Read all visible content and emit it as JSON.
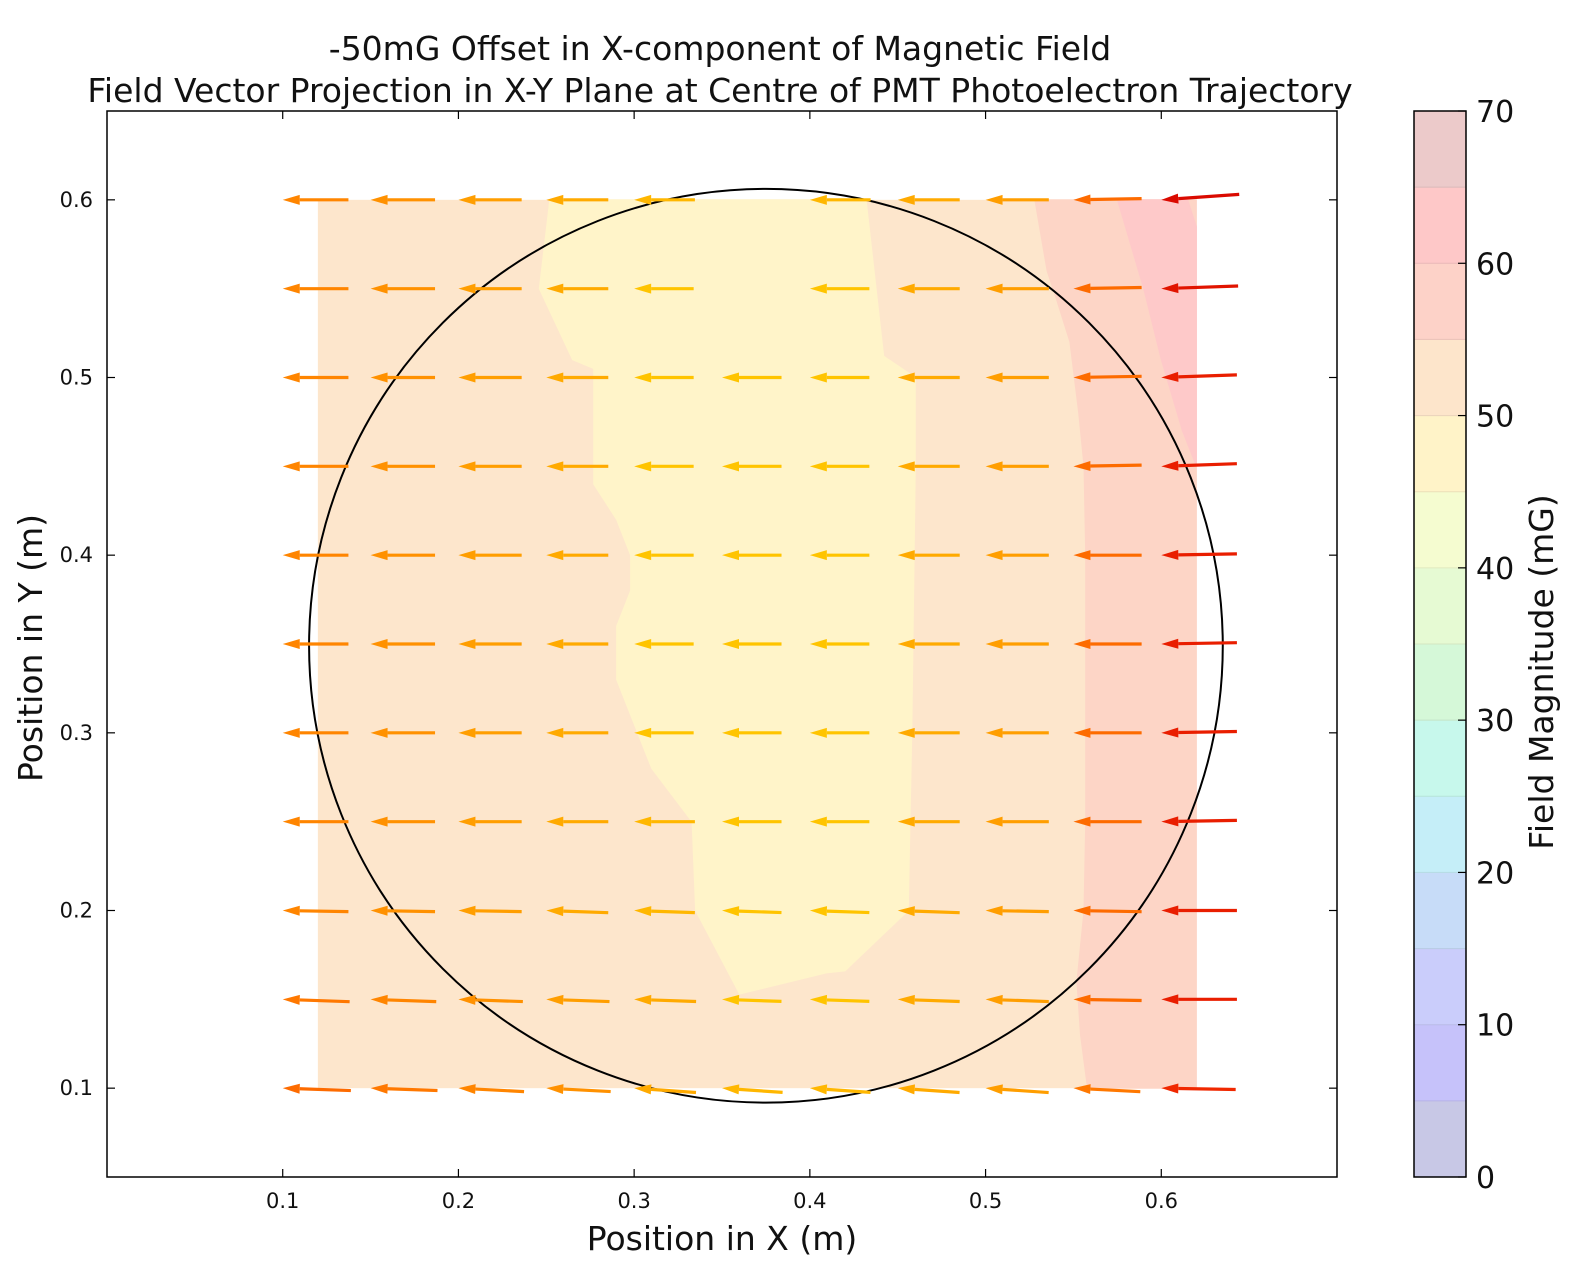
{
  "chart_data": {
    "type": "quiver-contour",
    "title": "-50mG Offset in X-component of Magnetic Field",
    "subtitle": "Field Vector Projection in X-Y Plane at Centre of PMT Photoelectron Trajectory",
    "xlabel": "Position in X (m)",
    "ylabel": "Position in Y (m)",
    "xlim": [
      0.0,
      0.7
    ],
    "ylim": [
      0.05,
      0.65
    ],
    "x_ticks": [
      "0.1",
      "0.2",
      "0.3",
      "0.4",
      "0.5",
      "0.6"
    ],
    "y_ticks": [
      "0.1",
      "0.2",
      "0.3",
      "0.4",
      "0.5",
      "0.6"
    ],
    "grid": false,
    "colorbar": {
      "label": "Field Magnitude (mG)",
      "range": [
        0,
        70
      ],
      "ticks": [
        "0",
        "10",
        "20",
        "30",
        "40",
        "50",
        "60",
        "70"
      ],
      "level_step": 5,
      "level_colors": [
        "#c8c8e6",
        "#c6c2fa",
        "#cacdfb",
        "#c7dcf8",
        "#c5eef8",
        "#c7f8ec",
        "#d5f8d8",
        "#e6fad3",
        "#f5fcd0",
        "#fff3c8",
        "#fde5cb",
        "#fdd2c8",
        "#fec8c8",
        "#eccaca"
      ]
    },
    "contour_regions": [
      {
        "level": "45-50 mG",
        "color": "#fff4c9",
        "polygon": [
          [
            0.252,
            0.6
          ],
          [
            0.432,
            0.6
          ],
          [
            0.442,
            0.512
          ],
          [
            0.46,
            0.5
          ],
          [
            0.46,
            0.45
          ],
          [
            0.458,
            0.3
          ],
          [
            0.457,
            0.25
          ],
          [
            0.456,
            0.2
          ],
          [
            0.42,
            0.166
          ],
          [
            0.41,
            0.165
          ],
          [
            0.36,
            0.153
          ],
          [
            0.335,
            0.2
          ],
          [
            0.333,
            0.25
          ],
          [
            0.31,
            0.28
          ],
          [
            0.29,
            0.33
          ],
          [
            0.29,
            0.36
          ],
          [
            0.298,
            0.38
          ],
          [
            0.298,
            0.4
          ],
          [
            0.29,
            0.42
          ],
          [
            0.277,
            0.44
          ],
          [
            0.277,
            0.505
          ],
          [
            0.265,
            0.51
          ],
          [
            0.246,
            0.55
          ]
        ]
      },
      {
        "level": "55-60 mG",
        "color": "#fdd5c6",
        "polygon": [
          [
            0.528,
            0.6
          ],
          [
            0.58,
            0.6
          ],
          [
            0.62,
            0.6
          ],
          [
            0.62,
            0.1
          ],
          [
            0.558,
            0.1
          ],
          [
            0.554,
            0.13
          ],
          [
            0.552,
            0.16
          ],
          [
            0.556,
            0.2
          ],
          [
            0.557,
            0.25
          ],
          [
            0.557,
            0.3
          ],
          [
            0.557,
            0.35
          ],
          [
            0.557,
            0.4
          ],
          [
            0.556,
            0.45
          ],
          [
            0.553,
            0.48
          ],
          [
            0.548,
            0.52
          ],
          [
            0.54,
            0.545
          ],
          [
            0.535,
            0.56
          ]
        ]
      },
      {
        "level": "60-65 mG",
        "color": "#fec9c9",
        "polygon": [
          [
            0.575,
            0.6
          ],
          [
            0.615,
            0.6
          ],
          [
            0.62,
            0.585
          ],
          [
            0.62,
            0.45
          ],
          [
            0.612,
            0.47
          ],
          [
            0.6,
            0.51
          ],
          [
            0.59,
            0.55
          ]
        ]
      }
    ],
    "circle": {
      "center": [
        0.375,
        0.349
      ],
      "radius": 0.26
    },
    "vectors": {
      "x": [
        0.1,
        0.15,
        0.2,
        0.25,
        0.3,
        0.35,
        0.4,
        0.45,
        0.5,
        0.55,
        0.6
      ],
      "y": [
        0.1,
        0.15,
        0.2,
        0.25,
        0.3,
        0.35,
        0.4,
        0.45,
        0.5,
        0.55,
        0.6
      ],
      "magnitudes_mG": [
        [
          55,
          54,
          53,
          52,
          50,
          49,
          49,
          50,
          51,
          54,
          60
        ],
        [
          54,
          53,
          52,
          51,
          50,
          48,
          48,
          50,
          51,
          55,
          61
        ],
        [
          53,
          52,
          51,
          50,
          49,
          48,
          48,
          50,
          51,
          55,
          61
        ],
        [
          53,
          52,
          51,
          50,
          49,
          48,
          48,
          50,
          51,
          55,
          61
        ],
        [
          53,
          52,
          51,
          50,
          48,
          48,
          48,
          50,
          51,
          55,
          61
        ],
        [
          53,
          52,
          51,
          50,
          48,
          48,
          48,
          50,
          51,
          55,
          61
        ],
        [
          53,
          52,
          51,
          50,
          48,
          48,
          48,
          50,
          51,
          55,
          61
        ],
        [
          53,
          52,
          51,
          50,
          48,
          48,
          48,
          50,
          51,
          55,
          61
        ],
        [
          53,
          52,
          51,
          50,
          48,
          48,
          48,
          50,
          51,
          55,
          61
        ],
        [
          53,
          52,
          51,
          50,
          48,
          48,
          48,
          50,
          51,
          55,
          62
        ],
        [
          53,
          52,
          51,
          50,
          49,
          48,
          49,
          50,
          51,
          55,
          63
        ]
      ],
      "angles_deg": [
        [
          178,
          178,
          177,
          177,
          176,
          176,
          176,
          176,
          176,
          177,
          179
        ],
        [
          178,
          178,
          178,
          178,
          178,
          178,
          178,
          178,
          178,
          179,
          180
        ],
        [
          179,
          179,
          179,
          178,
          178,
          178,
          178,
          178,
          179,
          179,
          180
        ],
        [
          180,
          180,
          180,
          180,
          180,
          180,
          180,
          180,
          180,
          180,
          181
        ],
        [
          180,
          180,
          180,
          180,
          180,
          180,
          180,
          180,
          180,
          180,
          181
        ],
        [
          180,
          180,
          180,
          180,
          180,
          180,
          180,
          180,
          180,
          180,
          181
        ],
        [
          180,
          180,
          180,
          180,
          180,
          180,
          180,
          180,
          180,
          180,
          181
        ],
        [
          180,
          180,
          180,
          180,
          180,
          180,
          180,
          180,
          180,
          181,
          182
        ],
        [
          180,
          180,
          180,
          180,
          180,
          180,
          180,
          180,
          180,
          181,
          182
        ],
        [
          180,
          180,
          180,
          180,
          180,
          180,
          180,
          180,
          180,
          181,
          182
        ],
        [
          180,
          180,
          180,
          180,
          180,
          180,
          180,
          180,
          180,
          181,
          184
        ]
      ],
      "missing": [
        [
          0.35,
          0.55
        ],
        [
          0.35,
          0.6
        ]
      ]
    }
  }
}
